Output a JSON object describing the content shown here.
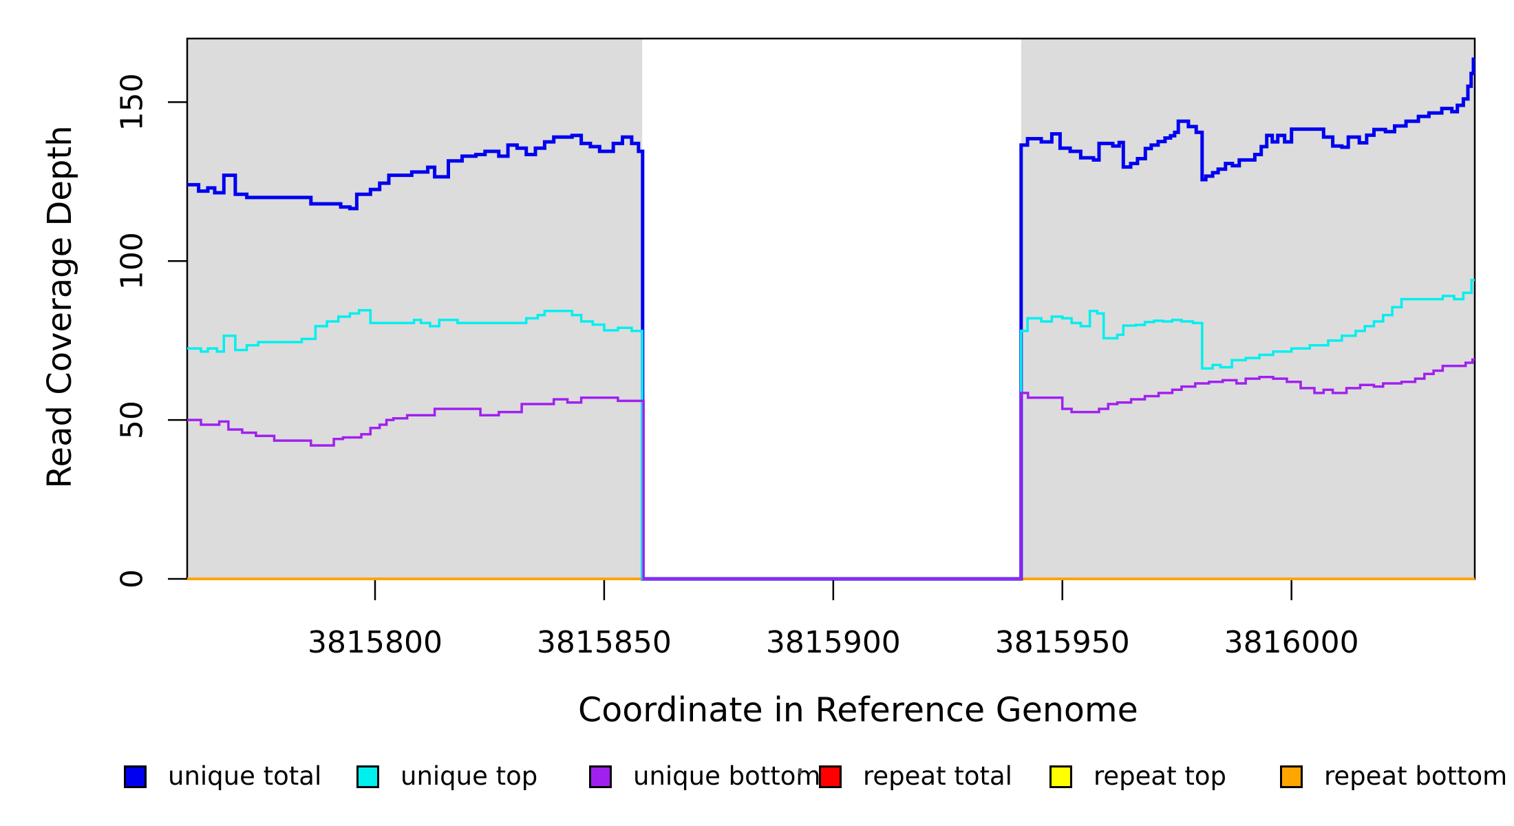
{
  "chart_data": {
    "type": "line",
    "subtype": "step-coverage",
    "title": "",
    "xlabel": "Coordinate in Reference Genome",
    "ylabel": "Read Coverage Depth",
    "xlim": [
      3815759,
      3816040
    ],
    "ylim": [
      0,
      170
    ],
    "x_ticks": [
      3815800,
      3815850,
      3815900,
      3815950,
      3816000
    ],
    "y_ticks": [
      0,
      50,
      100,
      150
    ],
    "grid": false,
    "legend_position": "bottom",
    "plot_bg": "#ffffff",
    "shaded_regions": [
      {
        "name": "left-unique-block",
        "x0": 3815759,
        "x1": 3815858.3,
        "color": "#DCDCDC"
      },
      {
        "name": "right-unique-block",
        "x0": 3815941,
        "x1": 3816040,
        "color": "#DCDCDC"
      }
    ],
    "gap_region": {
      "x0": 3815858.3,
      "x1": 3815941,
      "note": "all unique coverage drops to 0"
    },
    "series": [
      {
        "name": "repeat total",
        "color": "#FF0000",
        "width": 3,
        "steps": [
          [
            3815759,
            0
          ]
        ]
      },
      {
        "name": "repeat top",
        "color": "#FFFF00",
        "width": 3,
        "steps": [
          [
            3815759,
            0
          ]
        ]
      },
      {
        "name": "repeat bottom",
        "color": "#FFA500",
        "width": 4,
        "steps": [
          [
            3815759,
            0
          ]
        ]
      },
      {
        "name": "unique total",
        "color": "#0000F0",
        "width": 5,
        "steps": [
          [
            3815759,
            124
          ],
          [
            3815761.5,
            122
          ],
          [
            3815763.5,
            123
          ],
          [
            3815765,
            121.5
          ],
          [
            3815767,
            127
          ],
          [
            3815769.5,
            121
          ],
          [
            3815772,
            120
          ],
          [
            3815786,
            118
          ],
          [
            3815792.5,
            117
          ],
          [
            3815794.5,
            116.5
          ],
          [
            3815796,
            121
          ],
          [
            3815799,
            122.5
          ],
          [
            3815801,
            124.5
          ],
          [
            3815803,
            127
          ],
          [
            3815808,
            128
          ],
          [
            3815811.5,
            129.5
          ],
          [
            3815813,
            126.5
          ],
          [
            3815816,
            131.5
          ],
          [
            3815819,
            133
          ],
          [
            3815822,
            133.5
          ],
          [
            3815824,
            134.5
          ],
          [
            3815827,
            133
          ],
          [
            3815829,
            136.5
          ],
          [
            3815831,
            135.5
          ],
          [
            3815833,
            133.5
          ],
          [
            3815835,
            135.5
          ],
          [
            3815837,
            137.5
          ],
          [
            3815839,
            139
          ],
          [
            3815843,
            139.5
          ],
          [
            3815845,
            137
          ],
          [
            3815847,
            136
          ],
          [
            3815849,
            134.5
          ],
          [
            3815852,
            137
          ],
          [
            3815854,
            139
          ],
          [
            3815856,
            137
          ],
          [
            3815857.5,
            134.5
          ],
          [
            3815858.4,
            0
          ],
          [
            3815941,
            136.5
          ],
          [
            3815942.4,
            138.5
          ],
          [
            3815945.4,
            137.5
          ],
          [
            3815947.7,
            140
          ],
          [
            3815949.5,
            135.5
          ],
          [
            3815951.7,
            134.5
          ],
          [
            3815954,
            132.5
          ],
          [
            3815956.8,
            131.8
          ],
          [
            3815958,
            137
          ],
          [
            3815961,
            136.2
          ],
          [
            3815962.4,
            137.3
          ],
          [
            3815963.3,
            129.6
          ],
          [
            3815964.9,
            130.7
          ],
          [
            3815966.4,
            132.2
          ],
          [
            3815968.1,
            135.4
          ],
          [
            3815969.4,
            136.5
          ],
          [
            3815970.9,
            137.6
          ],
          [
            3815972.4,
            138.7
          ],
          [
            3815973.6,
            139.4
          ],
          [
            3815974.5,
            140.5
          ],
          [
            3815975.3,
            144
          ],
          [
            3815977.5,
            142.3
          ],
          [
            3815979.2,
            140.5
          ],
          [
            3815980.5,
            125.6
          ],
          [
            3815981.3,
            126.7
          ],
          [
            3815982.8,
            127.8
          ],
          [
            3815984,
            128.9
          ],
          [
            3815985.6,
            130.7
          ],
          [
            3815987.1,
            130
          ],
          [
            3815988.6,
            131.8
          ],
          [
            3815992,
            133.5
          ],
          [
            3815993.4,
            136
          ],
          [
            3815994.6,
            139.5
          ],
          [
            3815995.8,
            137.5
          ],
          [
            3815997,
            139.5
          ],
          [
            3815998.5,
            137.5
          ],
          [
            3816000,
            141.5
          ],
          [
            3816007,
            139
          ],
          [
            3816009,
            136.2
          ],
          [
            3816011,
            135.8
          ],
          [
            3816012.4,
            139
          ],
          [
            3816014.8,
            137.2
          ],
          [
            3816016.4,
            139.6
          ],
          [
            3816018,
            141.4
          ],
          [
            3816020.5,
            140.7
          ],
          [
            3816022.5,
            142.5
          ],
          [
            3816025,
            144
          ],
          [
            3816027.7,
            145.5
          ],
          [
            3816030,
            146.6
          ],
          [
            3816032.8,
            148
          ],
          [
            3816035,
            147
          ],
          [
            3816036.2,
            149
          ],
          [
            3816037.5,
            151
          ],
          [
            3816038.5,
            155
          ],
          [
            3816039.2,
            159
          ],
          [
            3816039.7,
            163.5
          ]
        ]
      },
      {
        "name": "unique top",
        "color": "#00EFEF",
        "width": 3.5,
        "steps": [
          [
            3815759,
            72.5
          ],
          [
            3815762,
            71.5
          ],
          [
            3815763.5,
            72.5
          ],
          [
            3815765.5,
            71.5
          ],
          [
            3815767,
            76.5
          ],
          [
            3815769.5,
            72
          ],
          [
            3815772,
            73.5
          ],
          [
            3815774.5,
            74.5
          ],
          [
            3815784,
            75.5
          ],
          [
            3815787,
            79.5
          ],
          [
            3815789.5,
            81
          ],
          [
            3815792,
            82.5
          ],
          [
            3815794.5,
            83.5
          ],
          [
            3815796.5,
            84.5
          ],
          [
            3815799,
            80.5
          ],
          [
            3815808.5,
            81.5
          ],
          [
            3815810,
            80.5
          ],
          [
            3815812,
            79.5
          ],
          [
            3815814,
            81.5
          ],
          [
            3815818,
            80.5
          ],
          [
            3815833,
            82
          ],
          [
            3815835.5,
            83
          ],
          [
            3815837,
            84.3
          ],
          [
            3815843,
            83
          ],
          [
            3815845,
            81
          ],
          [
            3815847.5,
            80
          ],
          [
            3815850,
            78.2
          ],
          [
            3815853,
            79
          ],
          [
            3815856,
            78
          ],
          [
            3815858.3,
            0
          ],
          [
            3815941,
            78
          ],
          [
            3815942.4,
            82
          ],
          [
            3815945.4,
            81
          ],
          [
            3815947.7,
            82.5
          ],
          [
            3815950,
            82
          ],
          [
            3815952,
            80.5
          ],
          [
            3815954,
            79.5
          ],
          [
            3815956,
            84.3
          ],
          [
            3815957.6,
            83.5
          ],
          [
            3815959,
            75.7
          ],
          [
            3815962,
            76.8
          ],
          [
            3815963.3,
            79.7
          ],
          [
            3815966,
            79.9
          ],
          [
            3815968,
            80.8
          ],
          [
            3815970,
            81.2
          ],
          [
            3815972,
            81
          ],
          [
            3815974,
            81.5
          ],
          [
            3815976,
            81
          ],
          [
            3815978.5,
            80.5
          ],
          [
            3815980.5,
            66.2
          ],
          [
            3815982.8,
            67.3
          ],
          [
            3815984.5,
            66.6
          ],
          [
            3815987,
            68.8
          ],
          [
            3815990,
            69.5
          ],
          [
            3815993,
            70.5
          ],
          [
            3815996,
            71.5
          ],
          [
            3816000,
            72.5
          ],
          [
            3816004,
            73.5
          ],
          [
            3816008,
            75
          ],
          [
            3816011,
            76.5
          ],
          [
            3816014,
            78
          ],
          [
            3816016,
            79.5
          ],
          [
            3816018,
            81
          ],
          [
            3816020,
            83
          ],
          [
            3816022,
            85.5
          ],
          [
            3816024,
            88
          ],
          [
            3816033,
            89
          ],
          [
            3816035.5,
            88
          ],
          [
            3816037.5,
            90
          ],
          [
            3816039.3,
            94
          ]
        ]
      },
      {
        "name": "unique bottom",
        "color": "#A020F0",
        "width": 3.5,
        "steps": [
          [
            3815759,
            50
          ],
          [
            3815762,
            48.5
          ],
          [
            3815766,
            49.5
          ],
          [
            3815768,
            47
          ],
          [
            3815771,
            46
          ],
          [
            3815774,
            45
          ],
          [
            3815778,
            43.5
          ],
          [
            3815786,
            42
          ],
          [
            3815791,
            44
          ],
          [
            3815793,
            44.5
          ],
          [
            3815797,
            45.5
          ],
          [
            3815799,
            47.5
          ],
          [
            3815801,
            48.5
          ],
          [
            3815802.5,
            50
          ],
          [
            3815804,
            50.5
          ],
          [
            3815807,
            51.5
          ],
          [
            3815813,
            53.5
          ],
          [
            3815823,
            51.5
          ],
          [
            3815827,
            52.5
          ],
          [
            3815832,
            55
          ],
          [
            3815839,
            56.5
          ],
          [
            3815842,
            55.5
          ],
          [
            3815845,
            57
          ],
          [
            3815853,
            56
          ],
          [
            3815858.6,
            0
          ],
          [
            3815941,
            58.5
          ],
          [
            3815942.5,
            57
          ],
          [
            3815950,
            53.5
          ],
          [
            3815952,
            52.5
          ],
          [
            3815958,
            53.5
          ],
          [
            3815960,
            55
          ],
          [
            3815962,
            55.5
          ],
          [
            3815965,
            56.5
          ],
          [
            3815968,
            57.5
          ],
          [
            3815971,
            58.5
          ],
          [
            3815974,
            59.5
          ],
          [
            3815976,
            60.5
          ],
          [
            3815979,
            61.5
          ],
          [
            3815982,
            62
          ],
          [
            3815985,
            62.5
          ],
          [
            3815988,
            61.5
          ],
          [
            3815990,
            63
          ],
          [
            3815993,
            63.5
          ],
          [
            3815996,
            63
          ],
          [
            3815999,
            62
          ],
          [
            3816002,
            60
          ],
          [
            3816005,
            58.5
          ],
          [
            3816007,
            59.5
          ],
          [
            3816009,
            58.5
          ],
          [
            3816012,
            60
          ],
          [
            3816015,
            61
          ],
          [
            3816018,
            60.5
          ],
          [
            3816020,
            61.5
          ],
          [
            3816024,
            62
          ],
          [
            3816027,
            63
          ],
          [
            3816029,
            64.5
          ],
          [
            3816031,
            65.5
          ],
          [
            3816033,
            67
          ],
          [
            3816038,
            68
          ],
          [
            3816039.5,
            69
          ]
        ]
      }
    ]
  },
  "legend": {
    "items": [
      {
        "label": "unique total",
        "color": "#0000F0"
      },
      {
        "label": "unique top",
        "color": "#00EFEF"
      },
      {
        "label": "unique bottom",
        "color": "#A020F0"
      },
      {
        "label": "repeat total",
        "color": "#FF0000"
      },
      {
        "label": "repeat top",
        "color": "#FFFF00"
      },
      {
        "label": "repeat bottom",
        "color": "#FFA500"
      }
    ]
  },
  "colors": {
    "axis": "#000000",
    "shaded_region": "#DCDCDC",
    "background": "#ffffff"
  }
}
